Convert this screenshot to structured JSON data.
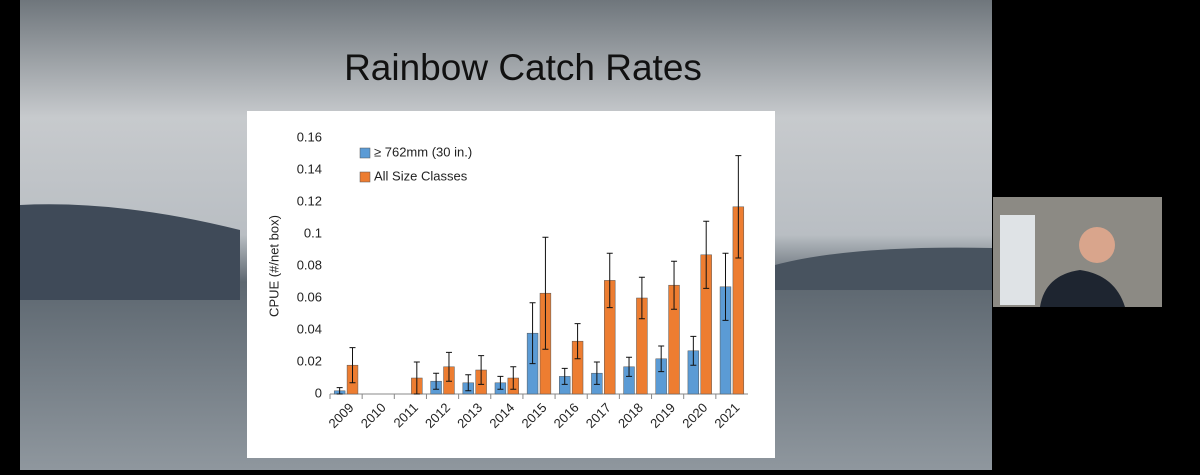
{
  "chart_data": {
    "type": "bar",
    "title": "Rainbow Catch Rates",
    "y_label": "CPUE (#/net box)",
    "categories": [
      "2009",
      "2010",
      "2011",
      "2012",
      "2013",
      "2014",
      "2015",
      "2016",
      "2017",
      "2018",
      "2019",
      "2020",
      "2021"
    ],
    "series": [
      {
        "name": "≥ 762mm (30 in.)",
        "color": "#5b9bd5",
        "values": [
          0.002,
          0,
          0,
          0.008,
          0.007,
          0.007,
          0.038,
          0.011,
          0.013,
          0.017,
          0.022,
          0.027,
          0.067
        ],
        "errors": [
          0.002,
          null,
          null,
          0.005,
          0.005,
          0.004,
          0.019,
          0.005,
          0.007,
          0.006,
          0.008,
          0.009,
          0.021
        ]
      },
      {
        "name": "All Size Classes",
        "color": "#ed7d31",
        "values": [
          0.018,
          0,
          0.01,
          0.017,
          0.015,
          0.01,
          0.063,
          0.033,
          0.071,
          0.06,
          0.068,
          0.087,
          0.117
        ],
        "errors": [
          0.011,
          null,
          0.01,
          0.009,
          0.009,
          0.007,
          0.035,
          0.011,
          0.017,
          0.013,
          0.015,
          0.021,
          0.032
        ]
      }
    ],
    "ylim": [
      0,
      0.16
    ],
    "yticks": [
      0,
      0.02,
      0.04,
      0.06,
      0.08,
      0.1,
      0.12,
      0.14,
      0.16
    ],
    "grid": false,
    "legend": "top-left"
  }
}
